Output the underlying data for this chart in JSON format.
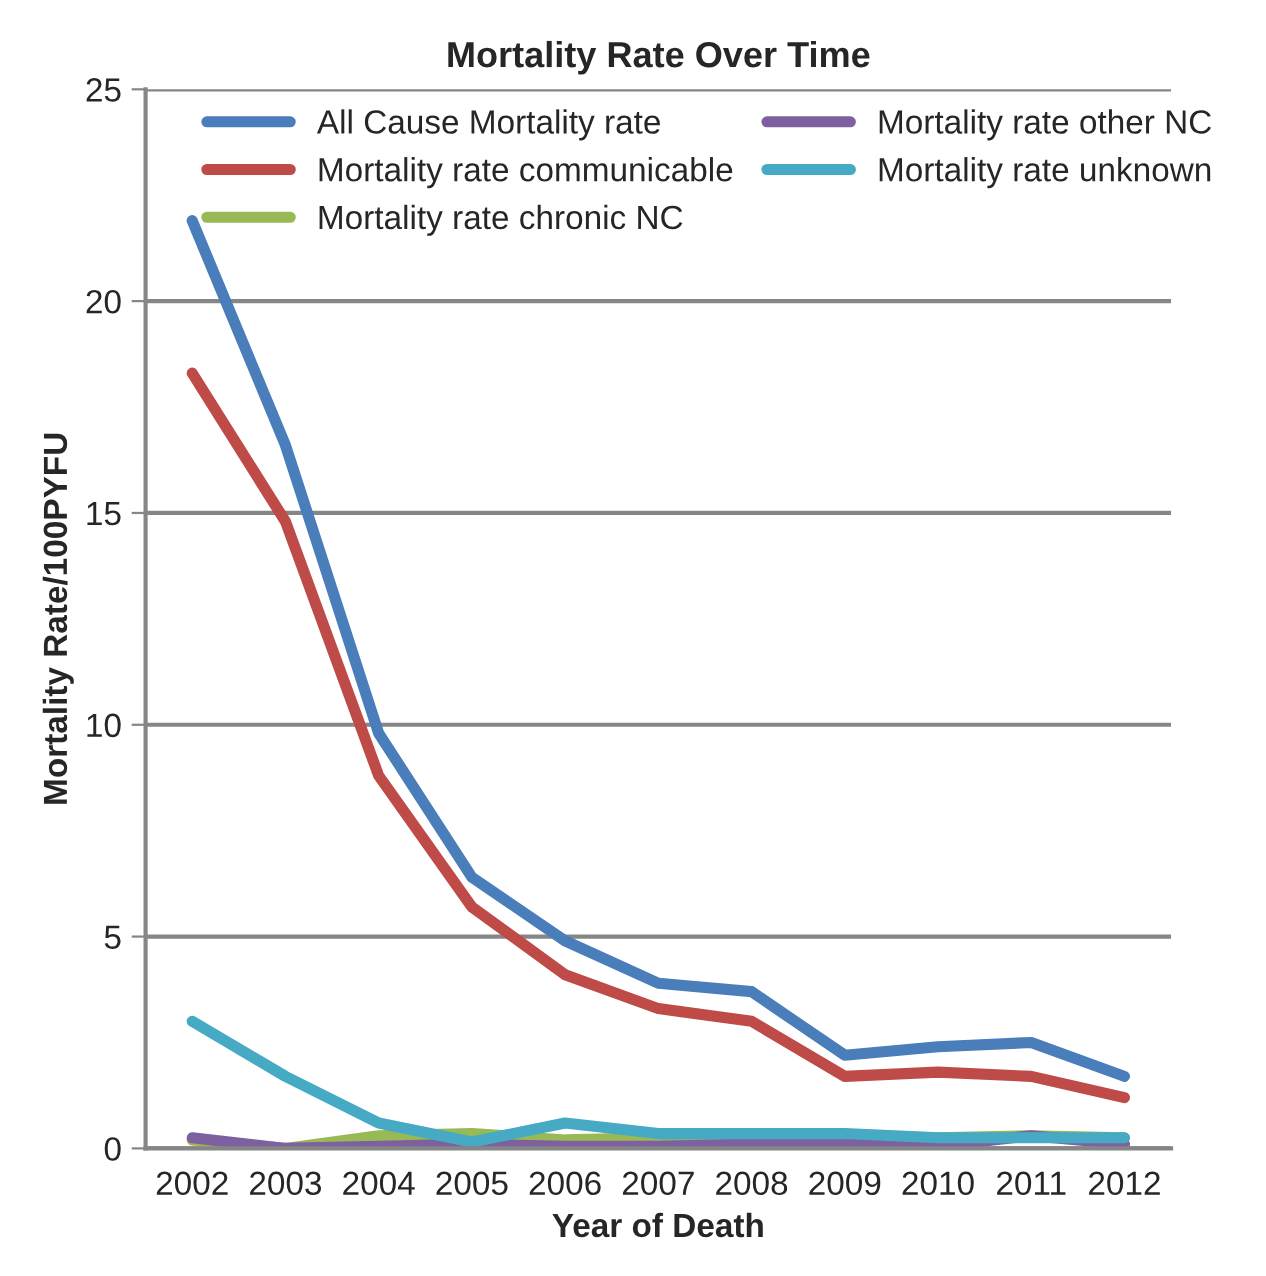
{
  "chart_data": {
    "type": "line",
    "title": "Mortality Rate Over Time",
    "xlabel": "Year of Death",
    "ylabel": "Mortality Rate/100PYFU",
    "categories": [
      "2002",
      "2003",
      "2004",
      "2005",
      "2006",
      "2007",
      "2008",
      "2009",
      "2010",
      "2011",
      "2012"
    ],
    "series": [
      {
        "name": "All Cause Mortality rate",
        "color": "#4a7ebb",
        "values": [
          21.9,
          16.6,
          9.8,
          6.4,
          4.9,
          3.9,
          3.7,
          2.2,
          2.4,
          2.5,
          1.7
        ]
      },
      {
        "name": "Mortality rate communicable",
        "color": "#be4b48",
        "values": [
          18.3,
          14.8,
          8.8,
          5.7,
          4.1,
          3.3,
          3.0,
          1.7,
          1.8,
          1.7,
          1.2
        ]
      },
      {
        "name": "Mortality rate chronic NC",
        "color": "#98b954",
        "values": [
          0.2,
          0.0,
          0.3,
          0.35,
          0.2,
          0.25,
          0.3,
          0.3,
          0.25,
          0.3,
          0.25
        ]
      },
      {
        "name": "Mortality rate other NC",
        "color": "#7d60a0",
        "values": [
          0.25,
          0.0,
          0.05,
          0.1,
          0.05,
          0.05,
          0.1,
          0.1,
          0.05,
          0.3,
          0.1
        ]
      },
      {
        "name": "Mortality rate unknown",
        "color": "#46aac5",
        "values": [
          3.0,
          1.7,
          0.6,
          0.15,
          0.6,
          0.35,
          0.35,
          0.35,
          0.25,
          0.25,
          0.25
        ]
      }
    ],
    "ylim": [
      0,
      25
    ],
    "yticks": [
      0,
      5,
      10,
      15,
      20,
      25
    ],
    "grid": "y",
    "legend": "top",
    "marker": "none",
    "line_style": "solid"
  }
}
